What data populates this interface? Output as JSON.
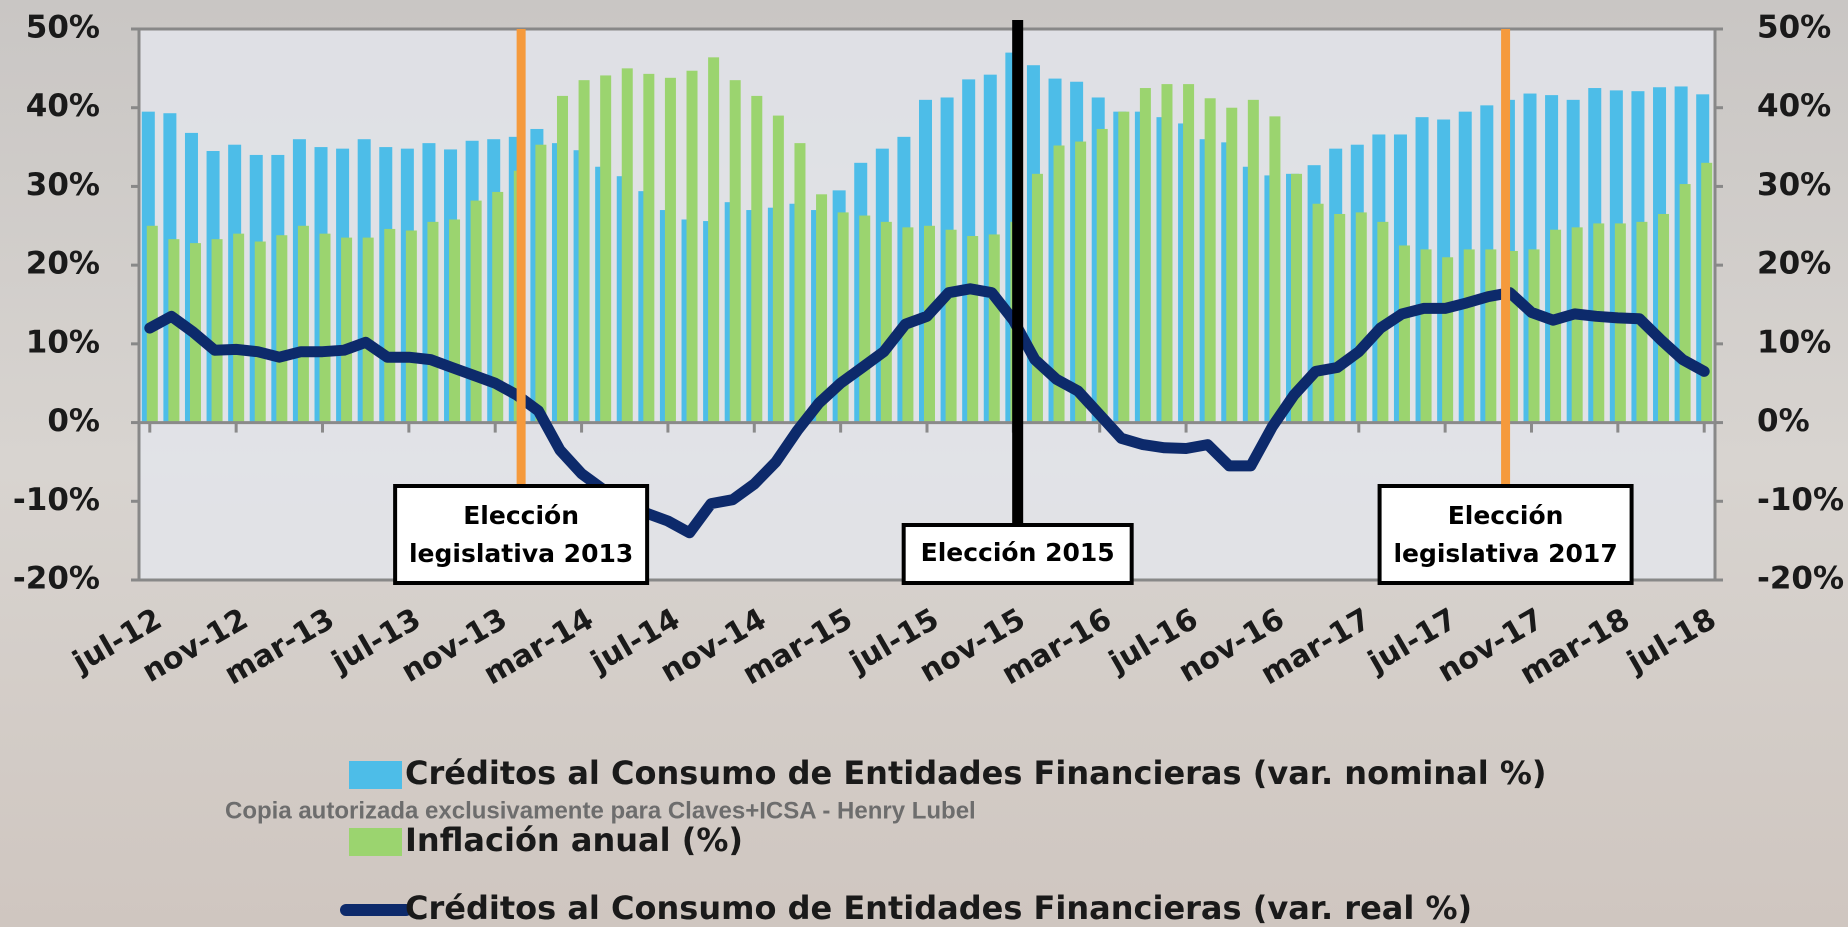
{
  "chart_data": {
    "type": "bar",
    "categories": [
      "jul-12",
      null,
      null,
      null,
      "nov-12",
      null,
      null,
      null,
      "mar-13",
      null,
      null,
      null,
      "jul-13",
      null,
      null,
      null,
      "nov-13",
      null,
      null,
      null,
      "mar-14",
      null,
      null,
      null,
      "jul-14",
      null,
      null,
      null,
      "nov-14",
      null,
      null,
      null,
      "mar-15",
      null,
      null,
      null,
      "jul-15",
      null,
      null,
      null,
      "nov-15",
      null,
      null,
      null,
      "mar-16",
      null,
      null,
      null,
      "jul-16",
      null,
      null,
      null,
      "nov-16",
      null,
      null,
      null,
      "mar-17",
      null,
      null,
      null,
      "jul-17",
      null,
      null,
      null,
      "nov-17",
      null,
      null,
      null,
      "mar-18",
      null,
      null,
      null,
      "jul-18"
    ],
    "series": [
      {
        "name": "Créditos al Consumo de Entidades Financieras (var. nominal %)",
        "type": "bar",
        "color": "#4dbde8",
        "values": [
          39.5,
          39.3,
          36.8,
          34.5,
          35.3,
          34,
          34,
          36,
          35,
          34.8,
          36,
          35,
          34.8,
          35.5,
          34.7,
          35.8,
          36,
          36.3,
          37.3,
          35.5,
          34.6,
          32.5,
          31.3,
          29.4,
          27,
          25.8,
          25.6,
          28,
          27,
          27.3,
          27.8,
          27,
          29.5,
          33,
          34.8,
          36.3,
          41,
          41.3,
          43.6,
          44.2,
          47,
          45.4,
          43.7,
          43.3,
          41.3,
          39.5,
          39.5,
          38.8,
          38,
          36,
          35.6,
          32.5,
          31.4,
          31.6,
          32.7,
          34.8,
          35.3,
          36.6,
          36.6,
          38.8,
          38.5,
          39.5,
          40.3,
          41,
          41.8,
          41.6,
          41,
          42.5,
          42.2,
          42.1,
          42.6,
          42.7,
          41.7
        ]
      },
      {
        "name": "Inflación anual (%)",
        "type": "bar",
        "color": "#9bd46f",
        "values": [
          25,
          23.3,
          22.8,
          23.3,
          24,
          23,
          23.8,
          25,
          24,
          23.5,
          23.5,
          24.6,
          24.4,
          25.5,
          25.8,
          28.2,
          29.3,
          32,
          35.3,
          41.5,
          43.5,
          44.1,
          45,
          44.3,
          43.8,
          44.7,
          46.4,
          43.5,
          41.5,
          39,
          35.5,
          29,
          26.7,
          26.3,
          25.5,
          24.8,
          25,
          24.5,
          23.7,
          23.9,
          25.5,
          31.6,
          35.2,
          35.7,
          37.3,
          39.5,
          42.5,
          43,
          43,
          41.2,
          40,
          41,
          38.9,
          31.6,
          27.8,
          26.5,
          26.7,
          25.5,
          22.5,
          22,
          21,
          22,
          22,
          21.8,
          22,
          24.5,
          24.8,
          25.3,
          25.3,
          25.5,
          26.5,
          30.3,
          33
        ]
      },
      {
        "name": "Créditos al Consumo de Entidades Financieras (var. real %)",
        "type": "line",
        "color": "#0d2a6b",
        "values": [
          12,
          13.5,
          11.5,
          9.2,
          9.3,
          9,
          8.3,
          9,
          9,
          9.2,
          10.2,
          8.3,
          8.3,
          8,
          7,
          6,
          5,
          3.5,
          1.5,
          -3.5,
          -6.5,
          -8.5,
          -10,
          -11.5,
          -12.5,
          -14,
          -10.3,
          -9.8,
          -7.8,
          -5,
          -1,
          2.5,
          5,
          7,
          9,
          12.5,
          13.5,
          16.5,
          17,
          16.5,
          13,
          8,
          5.5,
          4,
          1,
          -2,
          -2.8,
          -3.2,
          -3.3,
          -2.8,
          -5.5,
          -5.5,
          -0.5,
          3.5,
          6.5,
          7,
          9,
          12,
          13.8,
          14.5,
          14.5,
          15.2,
          16,
          16.5,
          14,
          13,
          13.8,
          13.5,
          13.3,
          13.2,
          10.5,
          8,
          6.5
        ]
      }
    ],
    "ylim": [
      -20,
      50
    ],
    "yticks": [
      {
        "value": 50,
        "label": "50%"
      },
      {
        "value": 40,
        "label": "40%"
      },
      {
        "value": 30,
        "label": "30%"
      },
      {
        "value": 20,
        "label": "20%"
      },
      {
        "value": 10,
        "label": "10%"
      },
      {
        "value": 0,
        "label": "0%"
      },
      {
        "value": -10,
        "label": "-10%"
      },
      {
        "value": -20,
        "label": "-20%"
      }
    ],
    "y2lim": [
      -20,
      50
    ],
    "y2ticks": [
      {
        "value": 50,
        "label": "50%"
      },
      {
        "value": 40,
        "label": "40%"
      },
      {
        "value": 30,
        "label": "30%"
      },
      {
        "value": 20,
        "label": "20%"
      },
      {
        "value": 10,
        "label": "10%"
      },
      {
        "value": 0,
        "label": "0%"
      },
      {
        "value": -10,
        "label": "-10%"
      },
      {
        "value": -20,
        "label": "-20%"
      }
    ],
    "annotations": [
      {
        "text": [
          "Elección",
          "legislativa 2013"
        ],
        "x": 17.2,
        "color": "#f59a3c"
      },
      {
        "text": [
          "Elección 2015"
        ],
        "x": 40.2,
        "color": "#000000"
      },
      {
        "text": [
          "Elección",
          "legislativa 2017"
        ],
        "x": 62.8,
        "color": "#f59a3c"
      }
    ],
    "watermark": "Copia autorizada exclusivamente para Claves+ICSA - Henry Lubel"
  }
}
